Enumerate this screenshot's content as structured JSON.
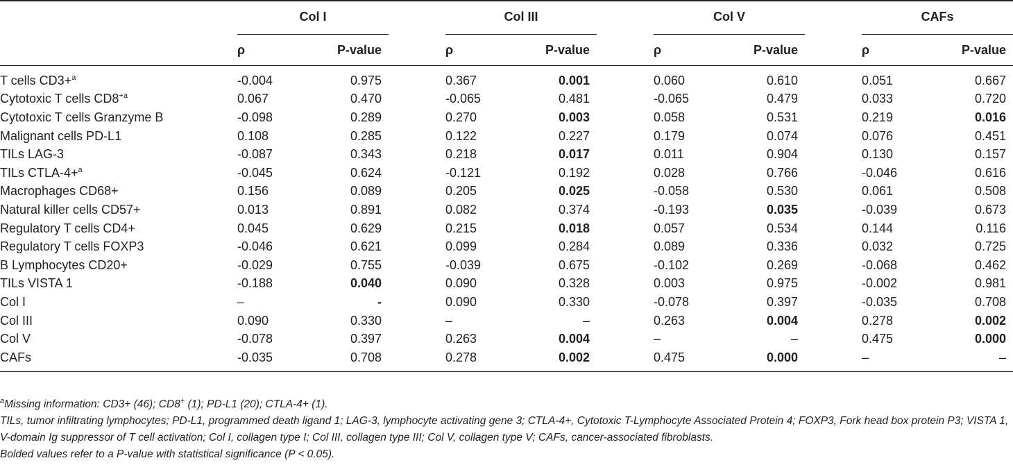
{
  "groups": [
    "Col I",
    "Col III",
    "Col V",
    "CAFs"
  ],
  "sub_headers": {
    "rho": "ρ",
    "pvalue": "P-value"
  },
  "rows": [
    {
      "label": "T cells CD3+",
      "sup": "a",
      "cells": [
        [
          "-0.004",
          "0.975",
          false
        ],
        [
          "0.367",
          "0.001",
          true
        ],
        [
          "0.060",
          "0.610",
          false
        ],
        [
          "0.051",
          "0.667",
          false
        ]
      ]
    },
    {
      "label": "Cytotoxic T cells CD8",
      "sup": "+a",
      "cells": [
        [
          "0.067",
          "0.470",
          false
        ],
        [
          "-0.065",
          "0.481",
          false
        ],
        [
          "-0.065",
          "0.479",
          false
        ],
        [
          "0.033",
          "0.720",
          false
        ]
      ]
    },
    {
      "label": "Cytotoxic T cells Granzyme B",
      "sup": "",
      "cells": [
        [
          "-0.098",
          "0.289",
          false
        ],
        [
          "0.270",
          "0.003",
          true
        ],
        [
          "0.058",
          "0.531",
          false
        ],
        [
          "0.219",
          "0.016",
          true
        ]
      ]
    },
    {
      "label": "Malignant cells PD-L1",
      "sup": "",
      "cells": [
        [
          "0.108",
          "0.285",
          false
        ],
        [
          "0.122",
          "0.227",
          false
        ],
        [
          "0.179",
          "0.074",
          false
        ],
        [
          "0.076",
          "0.451",
          false
        ]
      ]
    },
    {
      "label": "TILs LAG-3",
      "sup": "",
      "cells": [
        [
          "-0.087",
          "0.343",
          false
        ],
        [
          "0.218",
          "0.017",
          true
        ],
        [
          "0.011",
          "0.904",
          false
        ],
        [
          "0.130",
          "0.157",
          false
        ]
      ]
    },
    {
      "label": "TILs CTLA-4+",
      "sup": "a",
      "cells": [
        [
          "-0.045",
          "0.624",
          false
        ],
        [
          "-0.121",
          "0.192",
          false
        ],
        [
          "0.028",
          "0.766",
          false
        ],
        [
          "-0.046",
          "0.616",
          false
        ]
      ]
    },
    {
      "label": "Macrophages CD68+",
      "sup": "",
      "cells": [
        [
          "0.156",
          "0.089",
          false
        ],
        [
          "0.205",
          "0.025",
          true
        ],
        [
          "-0.058",
          "0.530",
          false
        ],
        [
          "0.061",
          "0.508",
          false
        ]
      ]
    },
    {
      "label": "Natural killer cells CD57+",
      "sup": "",
      "cells": [
        [
          "0.013",
          "0.891",
          false
        ],
        [
          "0.082",
          "0.374",
          false
        ],
        [
          "-0.193",
          "0.035",
          true
        ],
        [
          "-0.039",
          "0.673",
          false
        ]
      ]
    },
    {
      "label": "Regulatory T cells CD4+",
      "sup": "",
      "cells": [
        [
          "0.045",
          "0.629",
          false
        ],
        [
          "0.215",
          "0.018",
          true
        ],
        [
          "0.057",
          "0.534",
          false
        ],
        [
          "0.144",
          "0.116",
          false
        ]
      ]
    },
    {
      "label": "Regulatory T cells FOXP3",
      "sup": "",
      "cells": [
        [
          "-0.046",
          "0.621",
          false
        ],
        [
          "0.099",
          "0.284",
          false
        ],
        [
          "0.089",
          "0.336",
          false
        ],
        [
          "0.032",
          "0.725",
          false
        ]
      ]
    },
    {
      "label": "B Lymphocytes CD20+",
      "sup": "",
      "cells": [
        [
          "-0.029",
          "0.755",
          false
        ],
        [
          "-0.039",
          "0.675",
          false
        ],
        [
          "-0.102",
          "0.269",
          false
        ],
        [
          "-0.068",
          "0.462",
          false
        ]
      ]
    },
    {
      "label": "TILs VISTA 1",
      "sup": "",
      "cells": [
        [
          "-0.188",
          "0.040",
          true
        ],
        [
          "0.090",
          "0.328",
          false
        ],
        [
          "0.003",
          "0.975",
          false
        ],
        [
          "-0.002",
          "0.981",
          false
        ]
      ]
    },
    {
      "label": "Col I",
      "sup": "",
      "cells": [
        [
          "–",
          "-",
          true
        ],
        [
          "0.090",
          "0.330",
          false
        ],
        [
          "-0.078",
          "0.397",
          false
        ],
        [
          "-0.035",
          "0.708",
          false
        ]
      ]
    },
    {
      "label": "Col III",
      "sup": "",
      "cells": [
        [
          "0.090",
          "0.330",
          false
        ],
        [
          "–",
          "–",
          false
        ],
        [
          "0.263",
          "0.004",
          true
        ],
        [
          "0.278",
          "0.002",
          true
        ]
      ]
    },
    {
      "label": "Col V",
      "sup": "",
      "cells": [
        [
          "-0.078",
          "0.397",
          false
        ],
        [
          "0.263",
          "0.004",
          true
        ],
        [
          "–",
          "–",
          false
        ],
        [
          "0.475",
          "0.000",
          true
        ]
      ]
    },
    {
      "label": "CAFs",
      "sup": "",
      "cells": [
        [
          "-0.035",
          "0.708",
          false
        ],
        [
          "0.278",
          "0.002",
          true
        ],
        [
          "0.475",
          "0.000",
          true
        ],
        [
          "–",
          "–",
          false
        ]
      ]
    }
  ],
  "notes": {
    "missing_sup": "a",
    "missing_pre": "Missing information: CD3+ (46); CD8",
    "missing_sup2": "+",
    "missing_post": " (1); PD-L1 (20); CTLA-4+ (1).",
    "abbreviations": "TILs, tumor infiltrating lymphocytes; PD-L1, programmed death ligand 1; LAG-3, lymphocyte activating gene 3; CTLA-4+, Cytotoxic T-Lymphocyte Associated Protein 4; FOXP3, Fork head box protein P3; VISTA 1, V-domain Ig suppressor of T cell activation; Col I, collagen type I; Col III, collagen type III; Col V, collagen type V; CAFs, cancer-associated fibroblasts.",
    "bold_note": "Bolded values refer to a P-value with statistical significance (P < 0.05)."
  }
}
